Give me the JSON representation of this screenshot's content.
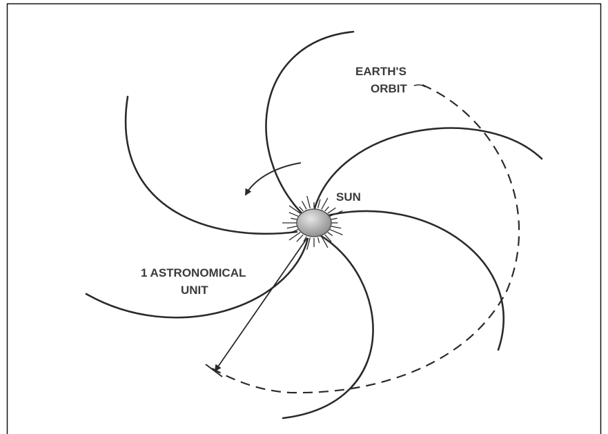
{
  "labels": {
    "orbit": {
      "lines": [
        "EARTH'S",
        "ORBIT"
      ]
    },
    "sun": {
      "lines": [
        "SUN"
      ]
    },
    "distance": {
      "lines": [
        "1 ASTRONOMICAL",
        "UNIT"
      ]
    }
  }
}
